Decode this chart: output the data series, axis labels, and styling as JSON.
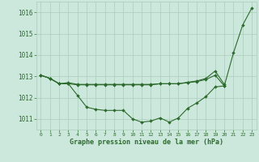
{
  "x": [
    0,
    1,
    2,
    3,
    4,
    5,
    6,
    7,
    8,
    9,
    10,
    11,
    12,
    13,
    14,
    15,
    16,
    17,
    18,
    19,
    20,
    21,
    22,
    23
  ],
  "line_bottom": [
    1013.05,
    1012.9,
    1012.65,
    1012.65,
    1012.1,
    1011.55,
    1011.45,
    1011.4,
    1011.4,
    1011.4,
    1011.0,
    1010.85,
    1010.9,
    1011.05,
    1010.85,
    1011.05,
    1011.5,
    1011.75,
    1012.05,
    1012.5,
    1012.55,
    1014.1,
    1015.4,
    1016.2
  ],
  "line_mid_x": [
    0,
    1,
    2,
    3,
    4,
    5,
    6,
    7,
    8,
    9,
    10,
    11,
    12,
    13,
    14,
    15,
    16,
    17,
    18,
    19,
    20
  ],
  "line_mid": [
    1013.05,
    1012.9,
    1012.65,
    1012.65,
    1012.6,
    1012.6,
    1012.6,
    1012.6,
    1012.6,
    1012.6,
    1012.6,
    1012.6,
    1012.6,
    1012.65,
    1012.65,
    1012.65,
    1012.7,
    1012.75,
    1012.85,
    1013.05,
    1012.55
  ],
  "line_top_x": [
    0,
    1,
    2,
    3,
    4,
    5,
    6,
    7,
    8,
    9,
    10,
    11,
    12,
    13,
    14,
    15,
    16,
    17,
    18,
    19,
    20
  ],
  "line_top": [
    1013.05,
    1012.9,
    1012.65,
    1012.7,
    1012.62,
    1012.62,
    1012.62,
    1012.62,
    1012.62,
    1012.62,
    1012.62,
    1012.62,
    1012.62,
    1012.65,
    1012.65,
    1012.65,
    1012.72,
    1012.78,
    1012.9,
    1013.25,
    1012.62
  ],
  "line_color": "#2d6a2d",
  "bg_color": "#cce8dc",
  "grid_color": "#aaccba",
  "xlabel": "Graphe pression niveau de la mer (hPa)",
  "ylim": [
    1010.5,
    1016.5
  ],
  "yticks": [
    1011,
    1012,
    1013,
    1014,
    1015,
    1016
  ],
  "xticks": [
    0,
    1,
    2,
    3,
    4,
    5,
    6,
    7,
    8,
    9,
    10,
    11,
    12,
    13,
    14,
    15,
    16,
    17,
    18,
    19,
    20,
    21,
    22,
    23
  ]
}
